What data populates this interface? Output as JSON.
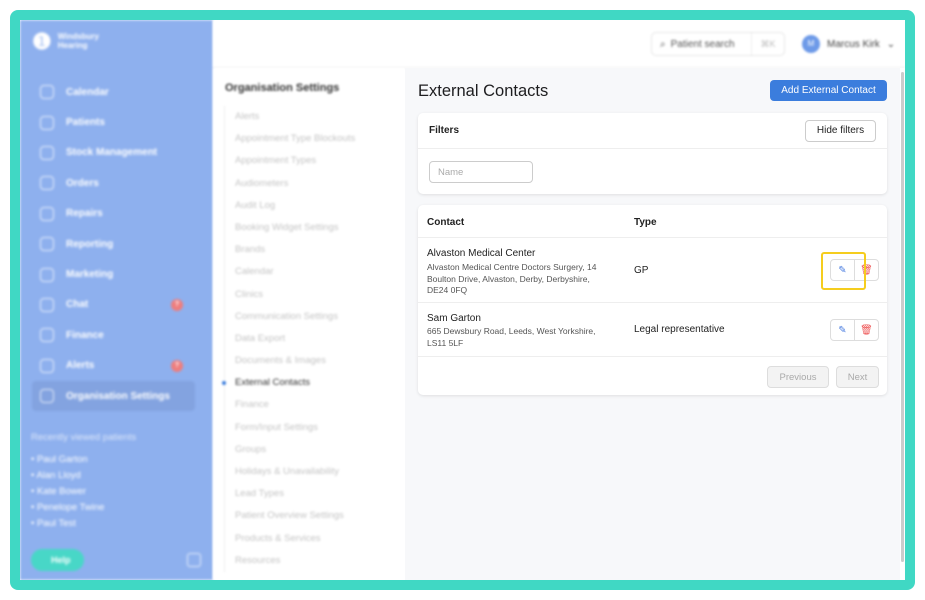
{
  "brand": {
    "name_line1": "Windsbury",
    "name_line2": "Hearing"
  },
  "sidebar": {
    "items": [
      {
        "label": "Calendar"
      },
      {
        "label": "Patients"
      },
      {
        "label": "Stock Management"
      },
      {
        "label": "Orders"
      },
      {
        "label": "Repairs"
      },
      {
        "label": "Reporting"
      },
      {
        "label": "Marketing"
      },
      {
        "label": "Chat",
        "badge": "?"
      },
      {
        "label": "Finance"
      },
      {
        "label": "Alerts",
        "badge": "?"
      },
      {
        "label": "Organisation Settings",
        "active": true
      }
    ],
    "recent_title": "Recently viewed patients",
    "recent": [
      "Paul Garton",
      "Alan Lloyd",
      "Kate Bower",
      "Penelope Twine",
      "Paul Test"
    ],
    "help_label": "Help"
  },
  "header": {
    "search_placeholder": "Patient search",
    "shortcut": "⌘K",
    "user_initial": "M",
    "user_name": "Marcus Kirk"
  },
  "settings": {
    "title": "Organisation Settings",
    "items": [
      "Alerts",
      "Appointment Type Blockouts",
      "Appointment Types",
      "Audiometers",
      "Audit Log",
      "Booking Widget Settings",
      "Brands",
      "Calendar",
      "Clinics",
      "Communication Settings",
      "Data Export",
      "Documents & Images",
      "External Contacts",
      "Finance",
      "Form/Input Settings",
      "Groups",
      "Holidays & Unavailability",
      "Lead Types",
      "Patient Overview Settings",
      "Products & Services",
      "Resources"
    ],
    "active": "External Contacts"
  },
  "main": {
    "title": "External Contacts",
    "add_label": "Add External Contact",
    "filters": {
      "title": "Filters",
      "hide_label": "Hide filters",
      "name_placeholder": "Name"
    },
    "table": {
      "columns": [
        "Contact",
        "Type"
      ],
      "rows": [
        {
          "name": "Alvaston Medical Center",
          "address": "Alvaston Medical Centre Doctors Surgery, 14 Boulton Drive, Alvaston, Derby, Derbyshire, DE24 0FQ",
          "type": "GP"
        },
        {
          "name": "Sam Garton",
          "address": "665 Dewsbury Road, Leeds, West Yorkshire, LS11 5LF",
          "type": "Legal representative"
        }
      ],
      "previous": "Previous",
      "next": "Next"
    }
  },
  "colors": {
    "accent": "#3b7ddd",
    "sidebar": "#8eb0ee",
    "frame": "#40d8c4",
    "highlight": "#f5cd1e"
  }
}
